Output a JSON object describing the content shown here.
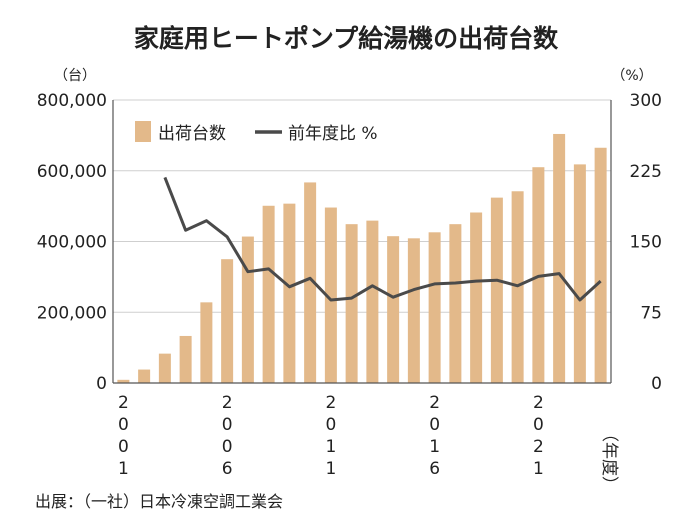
{
  "chart_data": {
    "type": "bar",
    "title": "家庭用ヒートポンプ給湯機の出荷台数",
    "left_unit": "（台）",
    "right_unit": "（%）",
    "x_unit": "（年度）",
    "source": "出展：（一社）日本冷凍空調工業会",
    "categories": [
      "2001",
      "2002",
      "2003",
      "2004",
      "2005",
      "2006",
      "2007",
      "2008",
      "2009",
      "2010",
      "2011",
      "2012",
      "2013",
      "2014",
      "2015",
      "2016",
      "2017",
      "2018",
      "2019",
      "2020",
      "2021",
      "2022",
      "2023",
      "2024"
    ],
    "x_tick_labels": [
      {
        "index": 0,
        "label": "2001"
      },
      {
        "index": 5,
        "label": "2006"
      },
      {
        "index": 10,
        "label": "2011"
      },
      {
        "index": 15,
        "label": "2016"
      },
      {
        "index": 20,
        "label": "2021"
      }
    ],
    "left_axis": {
      "min": 0,
      "max": 800000,
      "ticks": [
        "0",
        "200,000",
        "400,000",
        "600,000",
        "800,000"
      ],
      "tick_values": [
        0,
        200000,
        400000,
        600000,
        800000
      ]
    },
    "right_axis": {
      "min": 0,
      "max": 300,
      "ticks": [
        "0",
        "75",
        "150",
        "225",
        "300"
      ],
      "tick_values": [
        0,
        75,
        150,
        225,
        300
      ]
    },
    "grid": true,
    "legend_position": "top-left",
    "series": [
      {
        "name": "出荷台数",
        "type": "bar",
        "axis": "left",
        "color": "#e3b98a",
        "values": [
          9000,
          38000,
          83000,
          133000,
          228000,
          350000,
          414000,
          501000,
          507000,
          567000,
          496000,
          449000,
          459000,
          415000,
          409000,
          426000,
          449000,
          482000,
          524000,
          542000,
          610000,
          704000,
          618000,
          665000
        ]
      },
      {
        "name": "前年度比 %",
        "type": "line",
        "axis": "right",
        "color": "#4a4a4a",
        "values": [
          null,
          null,
          218,
          162,
          172,
          155,
          118,
          121,
          102,
          111,
          88,
          90,
          103,
          91,
          99,
          105,
          106,
          108,
          109,
          103,
          113,
          116,
          88,
          108
        ]
      }
    ]
  }
}
